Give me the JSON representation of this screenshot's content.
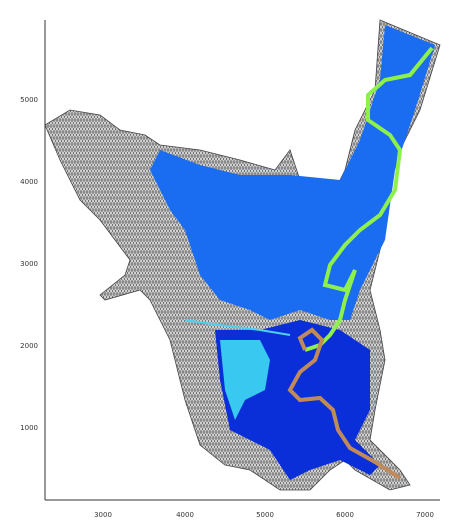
{
  "axes": {
    "y_ticks": [
      "5000",
      "4000",
      "3000",
      "2000",
      "1000"
    ],
    "x_ticks": [
      "3000",
      "4000",
      "5000",
      "6000",
      "7000"
    ]
  }
}
